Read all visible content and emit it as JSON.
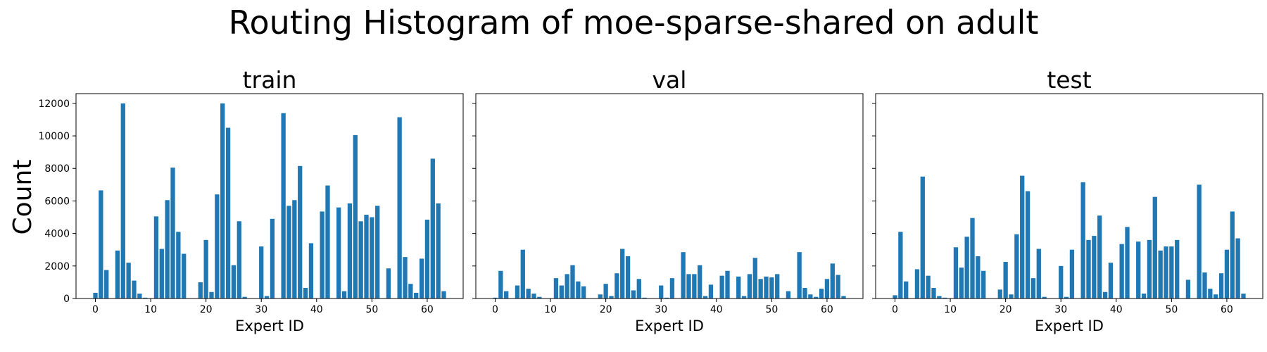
{
  "figure": {
    "title": "Routing Histogram of moe-sparse-shared on adult",
    "bar_color": "#1f77b4"
  },
  "chart_data": [
    {
      "type": "bar",
      "title": "train",
      "xlabel": "Expert ID",
      "ylabel": "Count",
      "xlim": [
        -3.5,
        66.5
      ],
      "ylim": [
        0,
        12600
      ],
      "xticks": [
        0,
        10,
        20,
        30,
        40,
        50,
        60
      ],
      "yticks": [
        0,
        2000,
        4000,
        6000,
        8000,
        10000,
        12000
      ],
      "x": [
        0,
        1,
        2,
        3,
        4,
        5,
        6,
        7,
        8,
        9,
        10,
        11,
        12,
        13,
        14,
        15,
        16,
        17,
        18,
        19,
        20,
        21,
        22,
        23,
        24,
        25,
        26,
        27,
        28,
        29,
        30,
        31,
        32,
        33,
        34,
        35,
        36,
        37,
        38,
        39,
        40,
        41,
        42,
        43,
        44,
        45,
        46,
        47,
        48,
        49,
        50,
        51,
        52,
        53,
        54,
        55,
        56,
        57,
        58,
        59,
        60,
        61,
        62,
        63
      ],
      "values": [
        350,
        6650,
        1750,
        0,
        2950,
        12000,
        2200,
        1100,
        300,
        50,
        0,
        5050,
        3050,
        6050,
        8050,
        4100,
        2750,
        0,
        0,
        1000,
        3600,
        400,
        6400,
        12000,
        10500,
        2050,
        4750,
        100,
        0,
        0,
        3200,
        150,
        4900,
        0,
        11400,
        5700,
        6050,
        8150,
        650,
        3400,
        0,
        5350,
        6950,
        0,
        5600,
        450,
        5850,
        10050,
        4750,
        5150,
        5000,
        5700,
        0,
        1850,
        0,
        11150,
        2550,
        900,
        350,
        2450,
        4850,
        8600,
        5850,
        450
      ]
    },
    {
      "type": "bar",
      "title": "val",
      "xlabel": "Expert ID",
      "ylabel": "",
      "xlim": [
        -3.5,
        66.5
      ],
      "ylim": [
        0,
        12600
      ],
      "xticks": [
        0,
        10,
        20,
        30,
        40,
        50,
        60
      ],
      "yticks": [
        0,
        2000,
        4000,
        6000,
        8000,
        10000,
        12000
      ],
      "x": [
        0,
        1,
        2,
        3,
        4,
        5,
        6,
        7,
        8,
        9,
        10,
        11,
        12,
        13,
        14,
        15,
        16,
        17,
        18,
        19,
        20,
        21,
        22,
        23,
        24,
        25,
        26,
        27,
        28,
        29,
        30,
        31,
        32,
        33,
        34,
        35,
        36,
        37,
        38,
        39,
        40,
        41,
        42,
        43,
        44,
        45,
        46,
        47,
        48,
        49,
        50,
        51,
        52,
        53,
        54,
        55,
        56,
        57,
        58,
        59,
        60,
        61,
        62,
        63
      ],
      "values": [
        50,
        1700,
        450,
        0,
        800,
        3000,
        600,
        300,
        100,
        20,
        0,
        1250,
        800,
        1500,
        2050,
        1050,
        750,
        0,
        0,
        250,
        900,
        150,
        1550,
        3050,
        2600,
        500,
        1200,
        50,
        0,
        0,
        800,
        50,
        1250,
        0,
        2850,
        1500,
        1500,
        2050,
        150,
        850,
        0,
        1400,
        1700,
        0,
        1350,
        150,
        1500,
        2500,
        1200,
        1350,
        1300,
        1500,
        0,
        450,
        0,
        2850,
        650,
        250,
        100,
        600,
        1200,
        2150,
        1450,
        150
      ]
    },
    {
      "type": "bar",
      "title": "test",
      "xlabel": "Expert ID",
      "ylabel": "",
      "xlim": [
        -3.5,
        66.5
      ],
      "ylim": [
        0,
        12600
      ],
      "xticks": [
        0,
        10,
        20,
        30,
        40,
        50,
        60
      ],
      "yticks": [
        0,
        2000,
        4000,
        6000,
        8000,
        10000,
        12000
      ],
      "x": [
        0,
        1,
        2,
        3,
        4,
        5,
        6,
        7,
        8,
        9,
        10,
        11,
        12,
        13,
        14,
        15,
        16,
        17,
        18,
        19,
        20,
        21,
        22,
        23,
        24,
        25,
        26,
        27,
        28,
        29,
        30,
        31,
        32,
        33,
        34,
        35,
        36,
        37,
        38,
        39,
        40,
        41,
        42,
        43,
        44,
        45,
        46,
        47,
        48,
        49,
        50,
        51,
        52,
        53,
        54,
        55,
        56,
        57,
        58,
        59,
        60,
        61,
        62,
        63
      ],
      "values": [
        200,
        4100,
        1050,
        0,
        1800,
        7500,
        1400,
        650,
        150,
        50,
        0,
        3150,
        1900,
        3800,
        4950,
        2600,
        1700,
        0,
        0,
        550,
        2250,
        250,
        3950,
        7550,
        6600,
        1250,
        3050,
        100,
        0,
        0,
        2000,
        100,
        3000,
        0,
        7150,
        3600,
        3850,
        5100,
        400,
        2200,
        0,
        3350,
        4400,
        0,
        3500,
        300,
        3600,
        6250,
        2950,
        3200,
        3200,
        3600,
        0,
        1150,
        0,
        7000,
        1600,
        600,
        250,
        1550,
        3000,
        5350,
        3700,
        300
      ]
    }
  ]
}
